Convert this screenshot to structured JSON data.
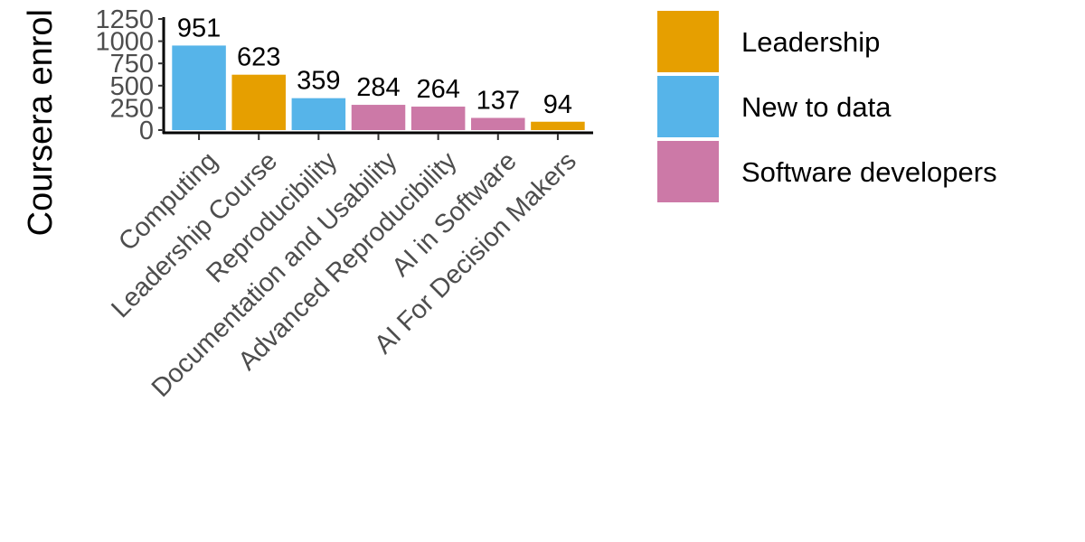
{
  "chart_data": {
    "type": "bar",
    "title": "",
    "xlabel": "",
    "ylabel": "Coursera enrol",
    "ylim": [
      0,
      1250
    ],
    "yticks": [
      0,
      250,
      500,
      750,
      1000,
      1250
    ],
    "categories": [
      "Computing",
      "Leadership Course",
      "Reproducibility",
      "Documentation and Usability",
      "Advanced Reproducibility",
      "AI in Software",
      "AI For Decision Makers"
    ],
    "values": [
      951,
      623,
      359,
      284,
      264,
      137,
      94
    ],
    "data_labels": [
      "951",
      "623",
      "359",
      "284",
      "264",
      "137",
      "94"
    ],
    "groups": [
      "New to data",
      "Leadership",
      "New to data",
      "Software developers",
      "Software developers",
      "Software developers",
      "Leadership"
    ],
    "legend": {
      "placement": "right",
      "entries": [
        {
          "name": "Leadership",
          "color": "#E69F00"
        },
        {
          "name": "New to data",
          "color": "#56B4E9"
        },
        {
          "name": "Software developers",
          "color": "#CC79A7"
        }
      ]
    },
    "grid": false
  }
}
